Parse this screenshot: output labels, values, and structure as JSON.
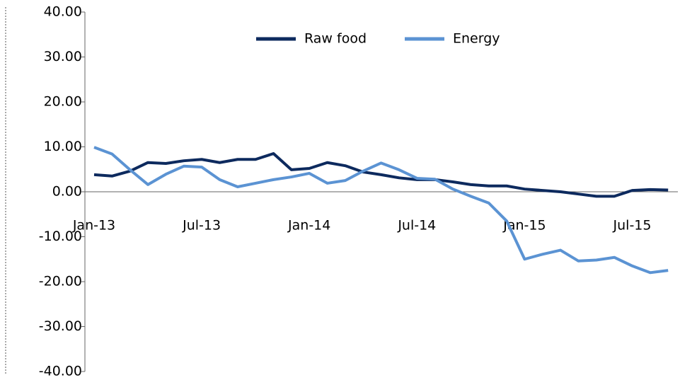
{
  "chart_data": {
    "type": "line",
    "categories": [
      "Jan-13",
      null,
      null,
      null,
      null,
      null,
      "Jul-13",
      null,
      null,
      null,
      null,
      null,
      "Jan-14",
      null,
      null,
      null,
      null,
      null,
      "Jul-14",
      null,
      null,
      null,
      null,
      null,
      "Jan-15",
      null,
      null,
      null,
      null,
      null,
      "Jul-15",
      null,
      null
    ],
    "series": [
      {
        "name": "Raw food",
        "color": "#0d2a5e",
        "values": [
          3.8,
          3.5,
          4.6,
          6.5,
          6.3,
          6.9,
          7.2,
          6.5,
          7.2,
          7.2,
          8.5,
          4.9,
          5.2,
          6.5,
          5.8,
          4.4,
          3.8,
          3.1,
          2.7,
          2.7,
          2.2,
          1.6,
          1.3,
          1.3,
          0.6,
          0.3,
          0.0,
          -0.5,
          -1.0,
          -1.0,
          0.3,
          0.5,
          0.4
        ]
      },
      {
        "name": "Energy",
        "color": "#5b93d3",
        "values": [
          9.9,
          8.4,
          4.9,
          1.6,
          3.9,
          5.7,
          5.5,
          2.7,
          1.1,
          1.9,
          2.7,
          3.3,
          4.1,
          1.9,
          2.5,
          4.6,
          6.4,
          4.9,
          3.0,
          2.8,
          0.6,
          -1.0,
          -2.5,
          -6.5,
          -15.0,
          -13.9,
          -13.0,
          -15.4,
          -15.2,
          -14.6,
          -16.5,
          -18.0,
          -17.5
        ]
      }
    ],
    "ylim": [
      -40,
      40
    ],
    "yticks": [
      {
        "value": -40,
        "label": "-40.00"
      },
      {
        "value": -30,
        "label": "-30.00"
      },
      {
        "value": -20,
        "label": "-20.00"
      },
      {
        "value": -10,
        "label": "-10.00"
      },
      {
        "value": 0,
        "label": "0.00"
      },
      {
        "value": 10,
        "label": "10.00"
      },
      {
        "value": 20,
        "label": "20.00"
      },
      {
        "value": 30,
        "label": "30.00"
      },
      {
        "value": 40,
        "label": "40.00"
      }
    ],
    "legend": "top"
  }
}
